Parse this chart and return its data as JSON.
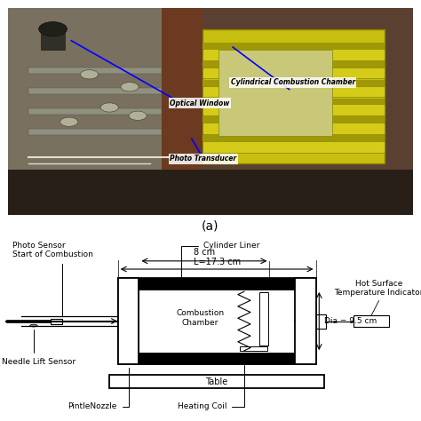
{
  "background_color": "#ffffff",
  "photo_label_a": "(a)",
  "diagram_labels": {
    "photo_sensor": "Photo Sensor\nStart of Combustion",
    "cylinder_liner": "Cylinder Liner",
    "dim_8cm": "8 cm",
    "dim_L": "L=17.3 cm",
    "combustion_chamber": "Combustion\nChamber",
    "hot_surface": "Hot Surface\nTemperature Indicator",
    "dia": "Dia = 9.5 cm",
    "needle_lift": "Needle Lift Sensor",
    "table": "Table",
    "pintle_nozzle": "PintleNozzle",
    "heating_coil": "Heating Coil",
    "optical_window": "Optical Window",
    "cylindrical_combustion": "Cylindrical Combustion Chamber",
    "photo_transducer": "Photo Transducer"
  },
  "photo": {
    "bg_color": "#a09880",
    "dark_base_color": "#2a2218",
    "yellow_cyl_color": "#c8c820",
    "left_mach_color": "#787060",
    "tube_dark": "#666600"
  },
  "colors": {
    "black": "#000000",
    "white": "#ffffff",
    "gray": "#888888"
  }
}
